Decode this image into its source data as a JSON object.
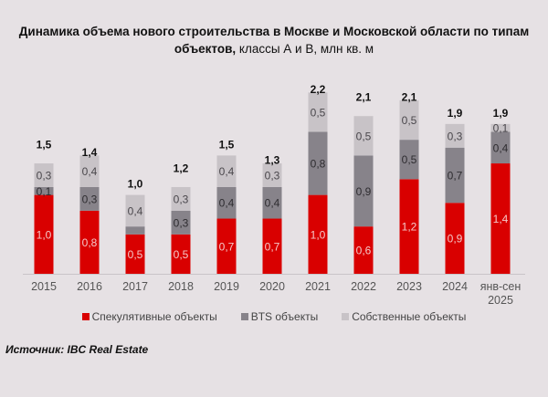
{
  "chart_data": {
    "type": "bar",
    "stacked": true,
    "title": "Динамика объема нового строительства в Москве и Московской области по типам",
    "title_line2_bold": "объектов,",
    "title_line2_rest": " классы А и В, млн кв. м",
    "xlabel": "",
    "ylabel": "",
    "ylim": [
      0,
      2.2
    ],
    "grid": false,
    "legend_position": "bottom",
    "categories": [
      "2015",
      "2016",
      "2017",
      "2018",
      "2019",
      "2020",
      "2021",
      "2022",
      "2023",
      "2024",
      "янв-сен 2025"
    ],
    "category_lines": [
      [
        "2015"
      ],
      [
        "2016"
      ],
      [
        "2017"
      ],
      [
        "2018"
      ],
      [
        "2019"
      ],
      [
        "2020"
      ],
      [
        "2021"
      ],
      [
        "2022"
      ],
      [
        "2023"
      ],
      [
        "2024"
      ],
      [
        "янв-сен",
        "2025"
      ]
    ],
    "series": [
      {
        "name": "Спекулятивные объекты",
        "color": "#d90000",
        "label_color": "#f4c9c9",
        "values": [
          1.0,
          0.8,
          0.5,
          0.5,
          0.7,
          0.7,
          1.0,
          0.6,
          1.2,
          0.9,
          1.4
        ],
        "labels": [
          "1,0",
          "0,8",
          "0,5",
          "0,5",
          "0,7",
          "0,7",
          "1,0",
          "0,6",
          "1,2",
          "0,9",
          "1,4"
        ]
      },
      {
        "name": "BTS объекты",
        "color": "#87838a",
        "label_color": "#2e2c30",
        "values": [
          0.1,
          0.3,
          0.1,
          0.3,
          0.4,
          0.4,
          0.8,
          0.9,
          0.5,
          0.7,
          0.4
        ],
        "labels": [
          "0,1",
          "0,3",
          "",
          "0,3",
          "0,4",
          "0,4",
          "0,8",
          "0,9",
          "0,5",
          "0,7",
          "0,4"
        ]
      },
      {
        "name": "Собственные объекты",
        "color": "#c8c3c7",
        "label_color": "#4a474c",
        "values": [
          0.3,
          0.4,
          0.4,
          0.3,
          0.4,
          0.3,
          0.5,
          0.5,
          0.5,
          0.3,
          0.1
        ],
        "labels": [
          "0,3",
          "0,4",
          "0,4",
          "0,3",
          "0,4",
          "0,3",
          "0,5",
          "0,5",
          "0,5",
          "0,3",
          "0,1"
        ]
      }
    ],
    "totals": [
      "1,5",
      "1,4",
      "1,0",
      "1,2",
      "1,5",
      "1,3",
      "2,2",
      "2,1",
      "2,1",
      "1,9",
      "1,9"
    ],
    "total_values": [
      1.5,
      1.4,
      1.0,
      1.2,
      1.5,
      1.3,
      2.2,
      2.1,
      2.1,
      1.9,
      1.9
    ]
  },
  "source": "Источник: IBC Real Estate"
}
